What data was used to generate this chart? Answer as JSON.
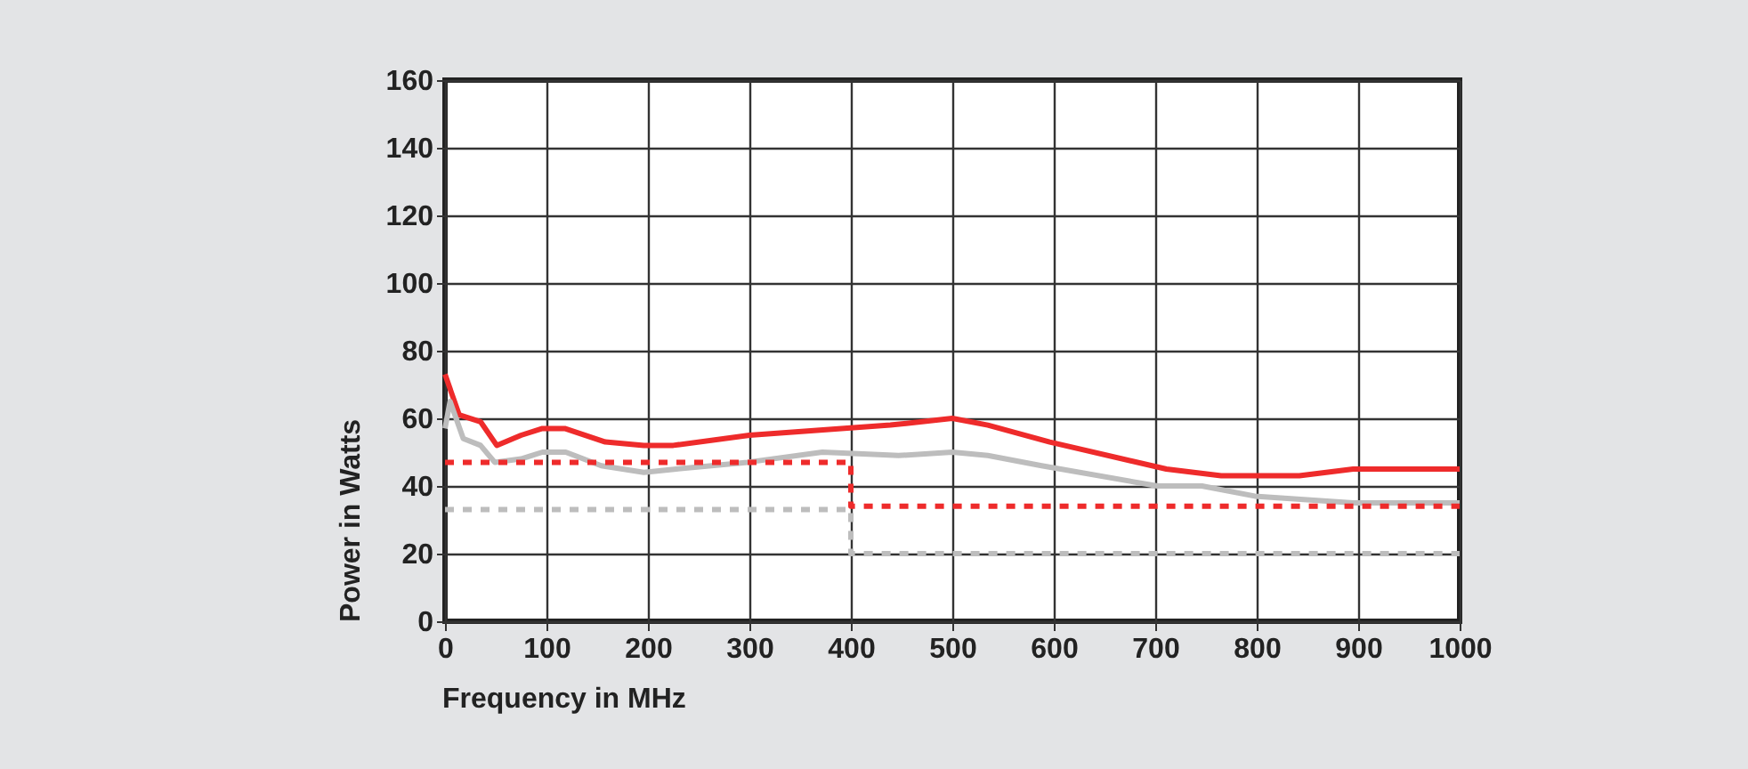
{
  "chart_data": {
    "type": "line",
    "xlabel": "Frequency in MHz",
    "ylabel": "Power in Watts",
    "xlim": [
      0,
      1000
    ],
    "xticks": [
      0,
      100,
      200,
      300,
      400,
      500,
      600,
      700,
      800,
      900,
      1000
    ],
    "ylim": [
      0,
      160
    ],
    "yticks": [
      0,
      20,
      40,
      60,
      80,
      100,
      120,
      140,
      160
    ],
    "grid": true,
    "series": [
      {
        "color": "#ee2b2b",
        "line_style": "solid",
        "x": [
          0,
          14,
          35,
          51,
          75,
          96,
          118,
          158,
          196,
          225,
          300,
          439,
          500,
          535,
          596,
          711,
          765,
          842,
          895,
          1000
        ],
        "values": [
          73,
          61,
          59,
          52,
          55,
          57,
          57,
          53,
          52,
          52,
          55,
          58,
          60,
          58,
          53,
          45,
          43,
          43,
          45,
          45
        ]
      },
      {
        "color": "#bdbdbd",
        "line_style": "solid",
        "x": [
          0,
          5,
          18,
          35,
          49,
          75,
          96,
          119,
          154,
          196,
          228,
          298,
          372,
          447,
          500,
          535,
          588,
          702,
          746,
          798,
          895,
          1000
        ],
        "values": [
          57,
          65,
          54,
          52,
          47,
          48,
          50,
          50,
          46,
          44,
          45,
          47,
          50,
          49,
          50,
          49,
          46,
          40,
          40,
          37,
          35,
          35
        ]
      },
      {
        "color": "#ee2b2b",
        "line_style": "dotted",
        "x": [
          0,
          400,
          400,
          1000
        ],
        "values": [
          47,
          47,
          34,
          34
        ]
      },
      {
        "color": "#bdbdbd",
        "line_style": "dotted",
        "x": [
          0,
          400,
          400,
          1000
        ],
        "values": [
          33,
          33,
          20,
          20
        ]
      }
    ]
  }
}
